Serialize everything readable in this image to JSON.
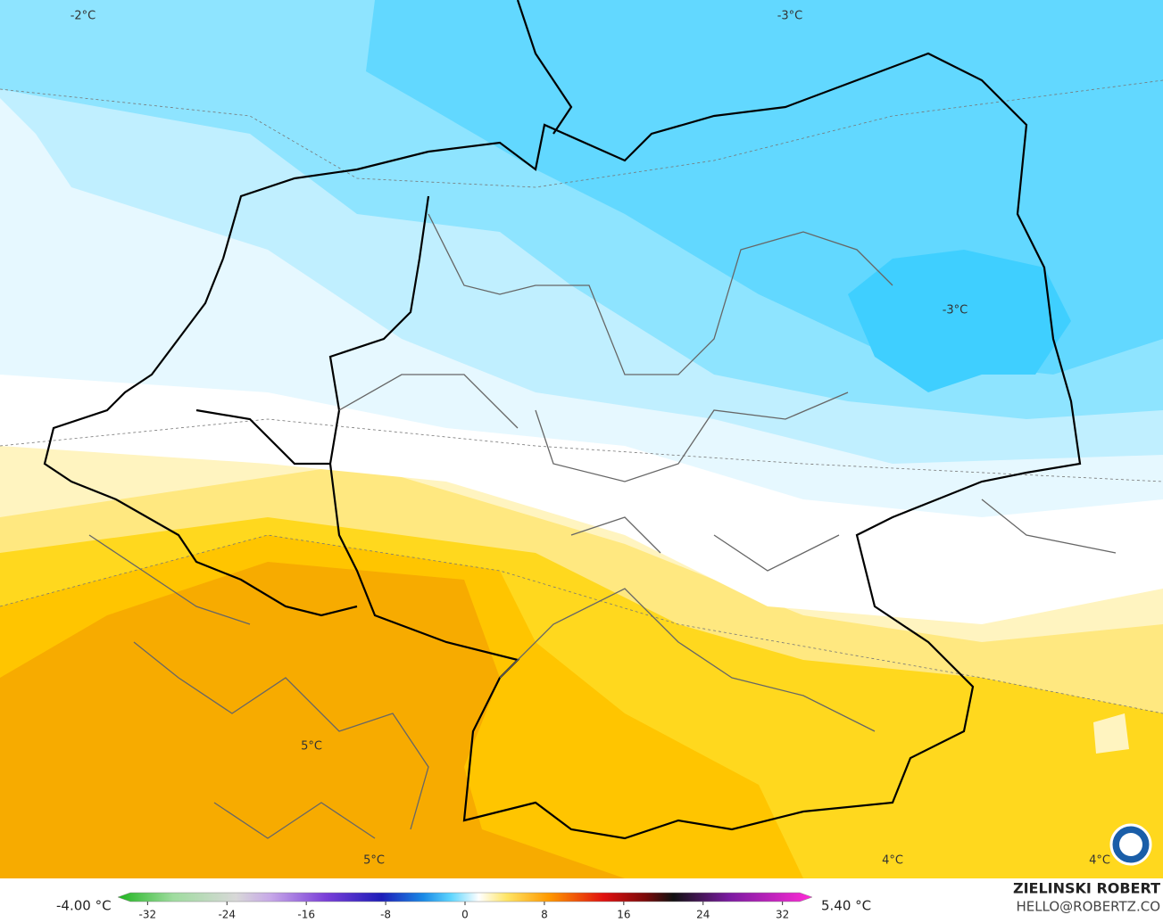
{
  "map": {
    "contour_labels": [
      "-2°C",
      "-3°C",
      "-3°C",
      "5°C",
      "5°C",
      "4°C",
      "4°C"
    ]
  },
  "legend": {
    "min_label": "-4.00 °C",
    "max_label": "5.40 °C",
    "lim": [
      -35,
      35
    ],
    "ticks": [
      -32,
      -24,
      -16,
      -8,
      0,
      8,
      16,
      24,
      32
    ]
  },
  "credit": {
    "name": "ZIELINSKI ROBERT",
    "email": "HELLO@ROBERTZ.CO"
  }
}
